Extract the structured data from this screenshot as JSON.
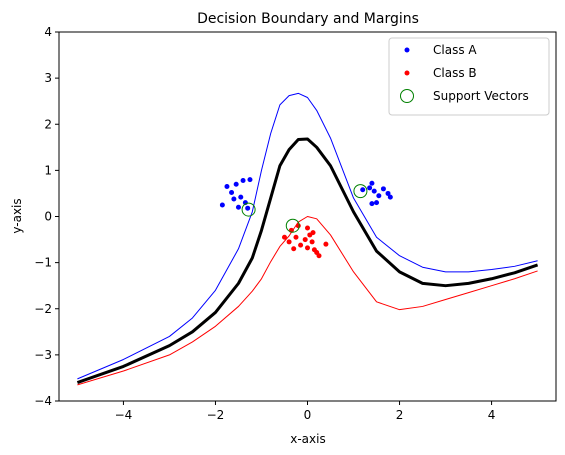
{
  "chart_data": {
    "type": "scatter",
    "title": "Decision Boundary and Margins",
    "xlabel": "x-axis",
    "ylabel": "y-axis",
    "xlim": [
      -5.4,
      5.4
    ],
    "ylim": [
      -4,
      4
    ],
    "xticks": [
      -4,
      -2,
      0,
      2,
      4
    ],
    "yticks": [
      -4,
      -3,
      -2,
      -1,
      0,
      1,
      2,
      3,
      4
    ],
    "grid": false,
    "legend_position": "top-right",
    "colors": {
      "class_a": "#0000ff",
      "class_b": "#ff0000",
      "support_vectors": "#008000",
      "boundary": "#000000",
      "upper_margin": "#0000ff",
      "lower_margin": "#ff0000"
    },
    "legend": [
      {
        "label": "Class A",
        "marker": "dot",
        "color": "#0000ff"
      },
      {
        "label": "Class B",
        "marker": "dot",
        "color": "#ff0000"
      },
      {
        "label": "Support Vectors",
        "marker": "hollow-circle",
        "color": "#008000"
      }
    ],
    "scatter_series": [
      {
        "name": "Class A",
        "color": "#0000ff",
        "points": [
          [
            -1.75,
            0.65
          ],
          [
            -1.55,
            0.7
          ],
          [
            -1.4,
            0.78
          ],
          [
            -1.25,
            0.8
          ],
          [
            -1.65,
            0.52
          ],
          [
            -1.6,
            0.38
          ],
          [
            -1.85,
            0.25
          ],
          [
            -1.5,
            0.2
          ],
          [
            -1.35,
            0.3
          ],
          [
            -1.45,
            0.42
          ],
          [
            -1.3,
            0.18
          ],
          [
            1.4,
            0.72
          ],
          [
            1.35,
            0.62
          ],
          [
            1.45,
            0.55
          ],
          [
            1.55,
            0.45
          ],
          [
            1.65,
            0.6
          ],
          [
            1.75,
            0.5
          ],
          [
            1.8,
            0.42
          ],
          [
            1.5,
            0.3
          ],
          [
            1.4,
            0.28
          ],
          [
            1.2,
            0.58
          ]
        ]
      },
      {
        "name": "Class B",
        "color": "#ff0000",
        "points": [
          [
            -0.35,
            -0.3
          ],
          [
            -0.25,
            -0.45
          ],
          [
            -0.4,
            -0.55
          ],
          [
            -0.3,
            -0.7
          ],
          [
            -0.15,
            -0.62
          ],
          [
            -0.05,
            -0.5
          ],
          [
            0.05,
            -0.4
          ],
          [
            0.12,
            -0.35
          ],
          [
            0.1,
            -0.55
          ],
          [
            0.0,
            -0.68
          ],
          [
            0.15,
            -0.72
          ],
          [
            0.2,
            -0.78
          ],
          [
            0.25,
            -0.85
          ],
          [
            0.4,
            -0.6
          ],
          [
            -0.5,
            -0.45
          ],
          [
            -0.2,
            -0.2
          ],
          [
            0.0,
            -0.25
          ]
        ]
      }
    ],
    "support_vectors": [
      [
        -1.28,
        0.15
      ],
      [
        -0.32,
        -0.2
      ],
      [
        1.15,
        0.55
      ]
    ],
    "lines": [
      {
        "name": "boundary",
        "color": "#000000",
        "width": 3,
        "x": [
          -5,
          -4,
          -3,
          -2.5,
          -2,
          -1.5,
          -1.2,
          -1,
          -0.8,
          -0.6,
          -0.4,
          -0.2,
          0,
          0.2,
          0.5,
          1,
          1.5,
          2,
          2.5,
          3,
          3.5,
          4,
          4.5,
          5
        ],
        "y": [
          -3.6,
          -3.25,
          -2.8,
          -2.5,
          -2.08,
          -1.45,
          -0.9,
          -0.3,
          0.4,
          1.1,
          1.45,
          1.67,
          1.68,
          1.5,
          1.1,
          0.1,
          -0.75,
          -1.2,
          -1.45,
          -1.5,
          -1.45,
          -1.35,
          -1.22,
          -1.05
        ]
      },
      {
        "name": "upper-margin",
        "color": "#0000ff",
        "width": 1,
        "x": [
          -5,
          -4,
          -3,
          -2.5,
          -2,
          -1.5,
          -1.2,
          -1,
          -0.8,
          -0.6,
          -0.4,
          -0.2,
          0,
          0.2,
          0.5,
          1,
          1.5,
          2,
          2.5,
          3,
          3.5,
          4,
          4.5,
          5
        ],
        "y": [
          -3.52,
          -3.1,
          -2.6,
          -2.2,
          -1.6,
          -0.7,
          0.1,
          1.0,
          1.8,
          2.42,
          2.62,
          2.67,
          2.58,
          2.3,
          1.7,
          0.4,
          -0.45,
          -0.85,
          -1.1,
          -1.2,
          -1.2,
          -1.15,
          -1.08,
          -0.96
        ]
      },
      {
        "name": "lower-margin",
        "color": "#ff0000",
        "width": 1,
        "x": [
          -5,
          -4,
          -3,
          -2.5,
          -2,
          -1.5,
          -1.2,
          -1,
          -0.8,
          -0.6,
          -0.4,
          -0.2,
          0,
          0.2,
          0.5,
          1,
          1.5,
          2,
          2.5,
          3,
          3.5,
          4,
          4.5,
          5
        ],
        "y": [
          -3.65,
          -3.35,
          -3.0,
          -2.72,
          -2.38,
          -1.95,
          -1.62,
          -1.35,
          -0.98,
          -0.65,
          -0.42,
          -0.12,
          0.0,
          -0.05,
          -0.4,
          -1.2,
          -1.85,
          -2.02,
          -1.95,
          -1.8,
          -1.65,
          -1.5,
          -1.35,
          -1.18
        ]
      }
    ]
  }
}
